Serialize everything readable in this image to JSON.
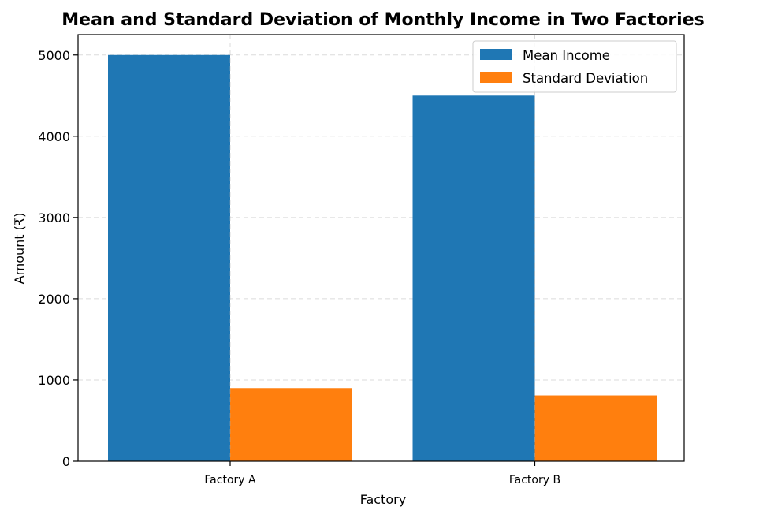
{
  "chart_data": {
    "type": "bar",
    "title": "Mean and Standard Deviation of Monthly Income in Two Factories",
    "xlabel": "Factory",
    "ylabel": "Amount (₹)",
    "categories": [
      "Factory A",
      "Factory B"
    ],
    "series": [
      {
        "name": "Mean Income",
        "values": [
          5000,
          4500
        ],
        "color": "#1f77b4"
      },
      {
        "name": "Standard Deviation",
        "values": [
          900,
          810
        ],
        "color": "#ff7f0e"
      }
    ],
    "ylim": [
      0,
      5250
    ],
    "yticks": [
      0,
      1000,
      2000,
      3000,
      4000,
      5000
    ],
    "grid": true,
    "legend_position": "top-right"
  }
}
